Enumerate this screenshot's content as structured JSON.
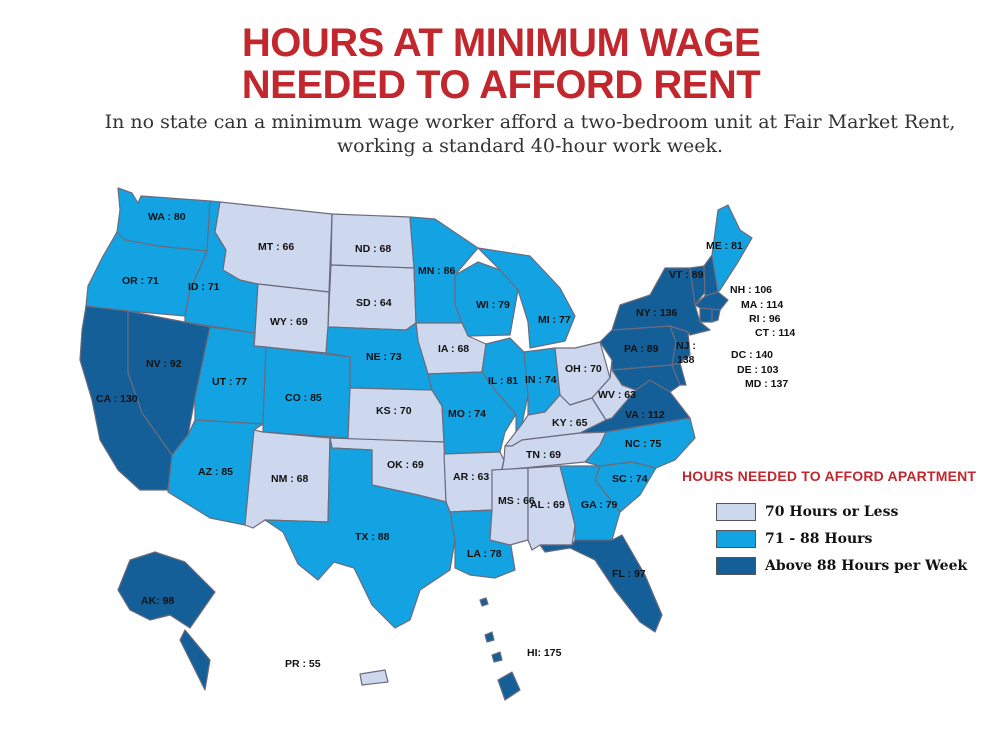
{
  "title": {
    "line1": "HOURS AT MINIMUM WAGE",
    "line2": "NEEDED TO AFFORD RENT"
  },
  "subtitle": {
    "line1": "In no state can a minimum wage worker afford a two-bedroom unit at Fair Market Rent,",
    "line2": "working a standard 40-hour work week."
  },
  "colors": {
    "low": "#cdd8ee",
    "mid": "#14a3e2",
    "high": "#155f98",
    "border": "#6b6b7d",
    "title": "#c1272d"
  },
  "legend": {
    "title": "HOURS NEEDED TO AFFORD APARTMENT",
    "items": [
      {
        "label": "70 Hours or Less",
        "tier": "low"
      },
      {
        "label": "71 - 88 Hours",
        "tier": "mid"
      },
      {
        "label": "Above 88 Hours per Week",
        "tier": "high"
      }
    ]
  },
  "states": {
    "WA": {
      "label": "WA : 80",
      "hours": 80,
      "tier": "mid"
    },
    "OR": {
      "label": "OR : 71",
      "hours": 71,
      "tier": "mid"
    },
    "ID": {
      "label": "ID : 71",
      "hours": 71,
      "tier": "mid"
    },
    "MT": {
      "label": "MT : 66",
      "hours": 66,
      "tier": "low"
    },
    "ND": {
      "label": "ND : 68",
      "hours": 68,
      "tier": "low"
    },
    "MN": {
      "label": "MN : 86",
      "hours": 86,
      "tier": "mid"
    },
    "SD": {
      "label": "SD : 64",
      "hours": 64,
      "tier": "low"
    },
    "WY": {
      "label": "WY : 69",
      "hours": 69,
      "tier": "low"
    },
    "WI": {
      "label": "WI : 79",
      "hours": 79,
      "tier": "mid"
    },
    "MI": {
      "label": "MI : 77",
      "hours": 77,
      "tier": "mid"
    },
    "IA": {
      "label": "IA : 68",
      "hours": 68,
      "tier": "low"
    },
    "NE": {
      "label": "NE : 73",
      "hours": 73,
      "tier": "mid"
    },
    "NV": {
      "label": "NV : 92",
      "hours": 92,
      "tier": "high"
    },
    "CA": {
      "label": "CA : 130",
      "hours": 130,
      "tier": "high"
    },
    "UT": {
      "label": "UT : 77",
      "hours": 77,
      "tier": "mid"
    },
    "CO": {
      "label": "CO : 85",
      "hours": 85,
      "tier": "mid"
    },
    "KS": {
      "label": "KS : 70",
      "hours": 70,
      "tier": "low"
    },
    "MO": {
      "label": "MO : 74",
      "hours": 74,
      "tier": "mid"
    },
    "IL": {
      "label": "IL : 81",
      "hours": 81,
      "tier": "mid"
    },
    "IN": {
      "label": "IN : 74",
      "hours": 74,
      "tier": "mid"
    },
    "OH": {
      "label": "OH : 70",
      "hours": 70,
      "tier": "low"
    },
    "KY": {
      "label": "KY : 65",
      "hours": 65,
      "tier": "low"
    },
    "WV": {
      "label": "WV : 63",
      "hours": 63,
      "tier": "low"
    },
    "AZ": {
      "label": "AZ : 85",
      "hours": 85,
      "tier": "mid"
    },
    "NM": {
      "label": "NM : 68",
      "hours": 68,
      "tier": "low"
    },
    "OK": {
      "label": "OK : 69",
      "hours": 69,
      "tier": "low"
    },
    "AR": {
      "label": "AR : 63",
      "hours": 63,
      "tier": "low"
    },
    "TN": {
      "label": "TN : 69",
      "hours": 69,
      "tier": "low"
    },
    "NC": {
      "label": "NC : 75",
      "hours": 75,
      "tier": "mid"
    },
    "SC": {
      "label": "SC : 74",
      "hours": 74,
      "tier": "mid"
    },
    "TX": {
      "label": "TX : 88",
      "hours": 88,
      "tier": "mid"
    },
    "LA": {
      "label": "LA : 78",
      "hours": 78,
      "tier": "mid"
    },
    "MS": {
      "label": "MS : 66",
      "hours": 66,
      "tier": "low"
    },
    "AL": {
      "label": "AL : 69",
      "hours": 69,
      "tier": "low"
    },
    "GA": {
      "label": "GA : 79",
      "hours": 79,
      "tier": "mid"
    },
    "FL": {
      "label": "FL : 97",
      "hours": 97,
      "tier": "high"
    },
    "VA": {
      "label": "VA : 112",
      "hours": 112,
      "tier": "high"
    },
    "PA": {
      "label": "PA : 89",
      "hours": 89,
      "tier": "high"
    },
    "NY": {
      "label": "NY : 136",
      "hours": 136,
      "tier": "high"
    },
    "VT": {
      "label": "VT : 89",
      "hours": 89,
      "tier": "high"
    },
    "ME": {
      "label": "ME : 81",
      "hours": 81,
      "tier": "mid"
    },
    "NH": {
      "label": "NH : 106",
      "hours": 106,
      "tier": "high"
    },
    "MA": {
      "label": "MA : 114",
      "hours": 114,
      "tier": "high"
    },
    "RI": {
      "label": "RI : 96",
      "hours": 96,
      "tier": "high"
    },
    "CT": {
      "label": "CT : 114",
      "hours": 114,
      "tier": "high"
    },
    "NJ": {
      "label": "NJ : 138",
      "hours": 138,
      "tier": "high"
    },
    "DC": {
      "label": "DC : 140",
      "hours": 140,
      "tier": "high"
    },
    "DE": {
      "label": "DE : 103",
      "hours": 103,
      "tier": "high"
    },
    "MD": {
      "label": "MD : 137",
      "hours": 137,
      "tier": "high"
    },
    "AK": {
      "label": "AK: 98",
      "hours": 98,
      "tier": "high"
    },
    "HI": {
      "label": "HI: 175",
      "hours": 175,
      "tier": "high"
    },
    "PR": {
      "label": "PR : 55",
      "hours": 55,
      "tier": "low"
    }
  }
}
